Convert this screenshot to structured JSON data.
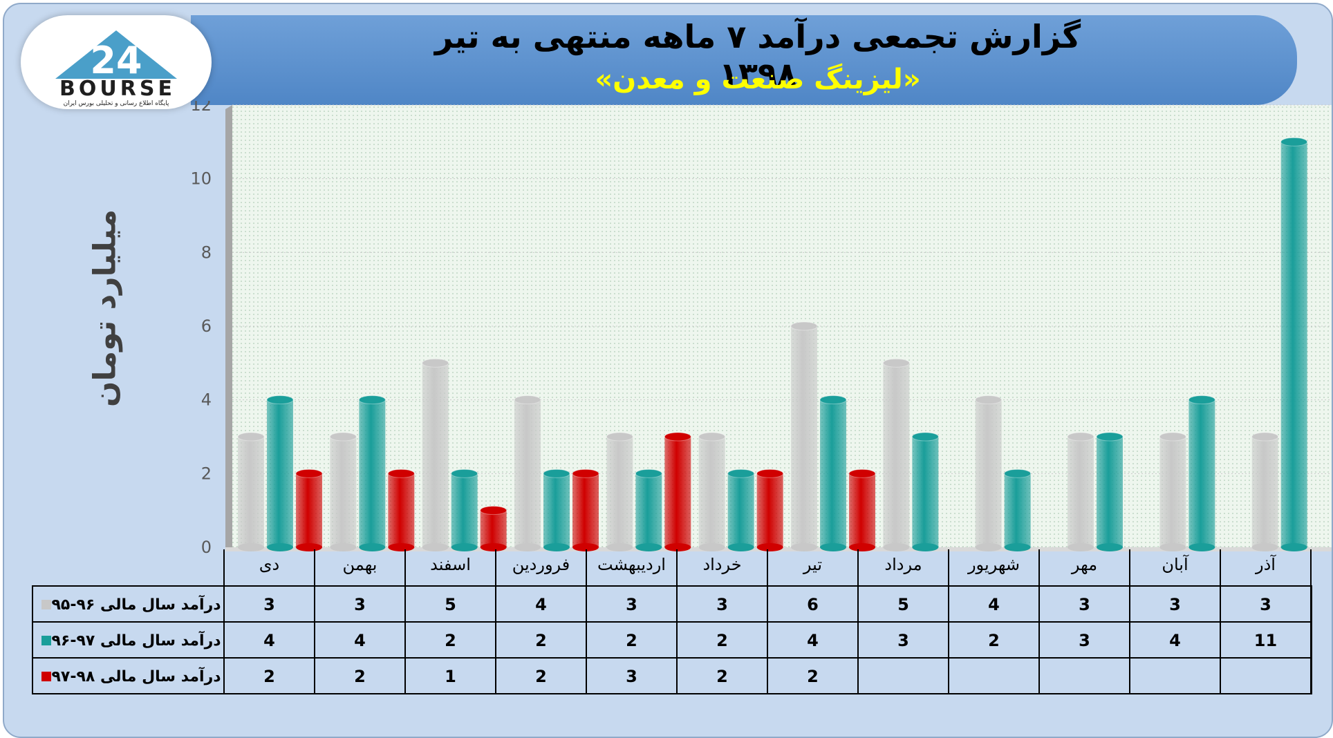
{
  "header": {
    "title": "گزارش تجمعی درآمد ۷ ماهه منتهی به تیر ۱۳۹۸",
    "subtitle": "«لیزینگ صنعت و معدن»"
  },
  "logo": {
    "mark": "24",
    "brand": "BOURSE",
    "tagline": "پایگاه اطلاع رسانی و تحلیلی بورس ایران"
  },
  "colors": {
    "series": [
      "#c8c8c8",
      "#1a9e9a",
      "#d00000"
    ],
    "banner": "#5b8fcb",
    "subtitle": "#ffff00",
    "background": "#c7d9ef"
  },
  "chart_data": {
    "type": "bar",
    "title": "گزارش تجمعی درآمد ۷ ماهه منتهی به تیر ۱۳۹۸",
    "subtitle": "«لیزینگ صنعت و معدن»",
    "xlabel": "",
    "ylabel": "میلیارد تومان",
    "ylim": [
      0,
      12
    ],
    "yticks": [
      0,
      2,
      4,
      6,
      8,
      10,
      12
    ],
    "grid": true,
    "legend": "data-table-below",
    "categories": [
      "دی",
      "بهمن",
      "اسفند",
      "فروردین",
      "اردیبهشت",
      "خرداد",
      "تیر",
      "مرداد",
      "شهریور",
      "مهر",
      "آبان",
      "آذر"
    ],
    "series": [
      {
        "name": "درآمد سال مالی ۹۶-۹۵",
        "values": [
          3,
          3,
          5,
          4,
          3,
          3,
          6,
          5,
          4,
          3,
          3,
          3
        ]
      },
      {
        "name": "درآمد سال مالی ۹۷-۹۶",
        "values": [
          4,
          4,
          2,
          2,
          2,
          2,
          4,
          3,
          2,
          3,
          4,
          11
        ]
      },
      {
        "name": "درآمد سال مالی ۹۸-۹۷",
        "values": [
          2,
          2,
          1,
          2,
          3,
          2,
          2,
          null,
          null,
          null,
          null,
          null
        ]
      }
    ]
  }
}
